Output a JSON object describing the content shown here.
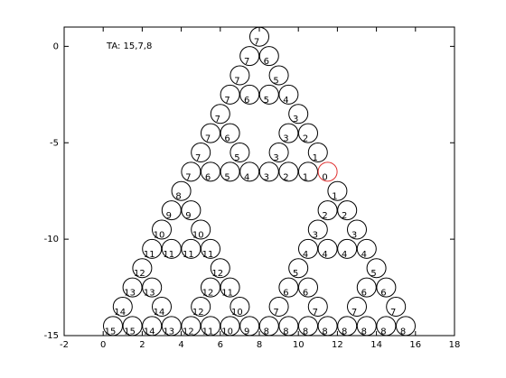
{
  "chart_data": {
    "type": "scatter",
    "annotation": "TA: 15,7,8",
    "xlim": [
      -2,
      18
    ],
    "ylim": [
      -15,
      1
    ],
    "xticks": [
      -2,
      0,
      2,
      4,
      6,
      8,
      10,
      12,
      14,
      16,
      18
    ],
    "yticks": [
      -15,
      -10,
      -5,
      0
    ],
    "series": [
      {
        "color": "#000000",
        "x": [
          8,
          7.5,
          8.5,
          7,
          9,
          6.5,
          7.5,
          8.5,
          9.5,
          6,
          10,
          5.5,
          6.5,
          9.5,
          10.5,
          5,
          7,
          9,
          11,
          4.5,
          5.5,
          6.5,
          7.5,
          8.5,
          9.5,
          10.5,
          4,
          12,
          3.5,
          4.5,
          11.5,
          12.5,
          3,
          5,
          11,
          13,
          2.5,
          3.5,
          4.5,
          5.5,
          10.5,
          11.5,
          12.5,
          13.5,
          2,
          6,
          10,
          14,
          1.5,
          2.5,
          5.5,
          6.5,
          9.5,
          10.5,
          13.5,
          14.5,
          1,
          3,
          5,
          7,
          9,
          11,
          13,
          15,
          0.5,
          1.5,
          2.5,
          3.5,
          4.5,
          5.5,
          6.5,
          7.5,
          8.5,
          9.5,
          10.5,
          11.5,
          12.5,
          13.5,
          14.5,
          15.5
        ],
        "values": [
          0.5,
          -0.5,
          -0.5,
          -1.5,
          -1.5,
          -2.5,
          -2.5,
          -2.5,
          -2.5,
          -3.5,
          -3.5,
          -4.5,
          -4.5,
          -4.5,
          -4.5,
          -5.5,
          -5.5,
          -5.5,
          -5.5,
          -6.5,
          -6.5,
          -6.5,
          -6.5,
          -6.5,
          -6.5,
          -6.5,
          -7.5,
          -7.5,
          -8.5,
          -8.5,
          -8.5,
          -8.5,
          -9.5,
          -9.5,
          -9.5,
          -9.5,
          -10.5,
          -10.5,
          -10.5,
          -10.5,
          -10.5,
          -10.5,
          -10.5,
          -10.5,
          -11.5,
          -11.5,
          -11.5,
          -11.5,
          -12.5,
          -12.5,
          -12.5,
          -12.5,
          -12.5,
          -12.5,
          -12.5,
          -12.5,
          -13.5,
          -13.5,
          -13.5,
          -13.5,
          -13.5,
          -13.5,
          -13.5,
          -13.5,
          -14.5,
          -14.5,
          -14.5,
          -14.5,
          -14.5,
          -14.5,
          -14.5,
          -14.5,
          -14.5,
          -14.5,
          -14.5,
          -14.5,
          -14.5,
          -14.5,
          -14.5,
          -14.5
        ],
        "point_labels": [
          7,
          7,
          6,
          7,
          5,
          7,
          6,
          5,
          4,
          7,
          3,
          7,
          6,
          3,
          2,
          7,
          5,
          3,
          1,
          7,
          6,
          5,
          4,
          3,
          2,
          1,
          8,
          1,
          9,
          9,
          2,
          2,
          10,
          10,
          3,
          3,
          11,
          11,
          11,
          11,
          4,
          4,
          4,
          4,
          12,
          12,
          5,
          5,
          13,
          13,
          12,
          11,
          6,
          6,
          6,
          6,
          14,
          14,
          12,
          10,
          7,
          7,
          7,
          7,
          15,
          15,
          14,
          13,
          12,
          11,
          10,
          9,
          8,
          8,
          8,
          8,
          8,
          8,
          8,
          8
        ]
      },
      {
        "color": "#e03030",
        "x": [
          11.5
        ],
        "values": [
          -6.5
        ],
        "point_labels": [
          0
        ]
      }
    ]
  }
}
